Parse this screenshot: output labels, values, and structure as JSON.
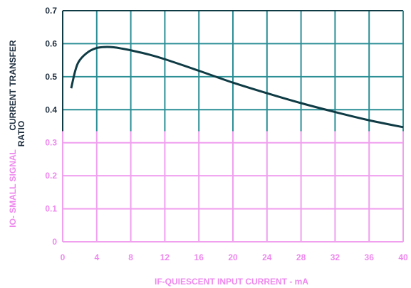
{
  "chart_data": {
    "type": "line",
    "xlabel": "IF-QUIESCENT INPUT CURRENT - mA",
    "ylabel_top": "CURRENT TRANSFER",
    "ylabel_top2": "RATIO",
    "ylabel_bottom": "IO- SMALL SIGNAL",
    "xlim": [
      0,
      40
    ],
    "ylim": [
      0,
      0.7
    ],
    "x_ticks": [
      "0",
      "4",
      "8",
      "12",
      "16",
      "20",
      "24",
      "28",
      "32",
      "36",
      "40"
    ],
    "y_ticks": [
      "0",
      "0.1",
      "0.2",
      "0.3",
      "0.4",
      "0.5",
      "0.6",
      "0.7"
    ],
    "grid": true,
    "series": [
      {
        "x": [
          1,
          1.5,
          2,
          3,
          4,
          5,
          6,
          7,
          8,
          10,
          12,
          16,
          20,
          24,
          28,
          32,
          36,
          40
        ],
        "y": [
          0.465,
          0.52,
          0.55,
          0.575,
          0.587,
          0.59,
          0.589,
          0.585,
          0.58,
          0.568,
          0.553,
          0.518,
          0.482,
          0.45,
          0.42,
          0.393,
          0.368,
          0.347
        ]
      }
    ],
    "colors": {
      "top_grid": "#2b8f96",
      "bottom_grid": "#f0a0ef",
      "curve": "#0f3b45",
      "top_text": "#1f2f3f",
      "bottom_text": "#ee88ee"
    }
  }
}
